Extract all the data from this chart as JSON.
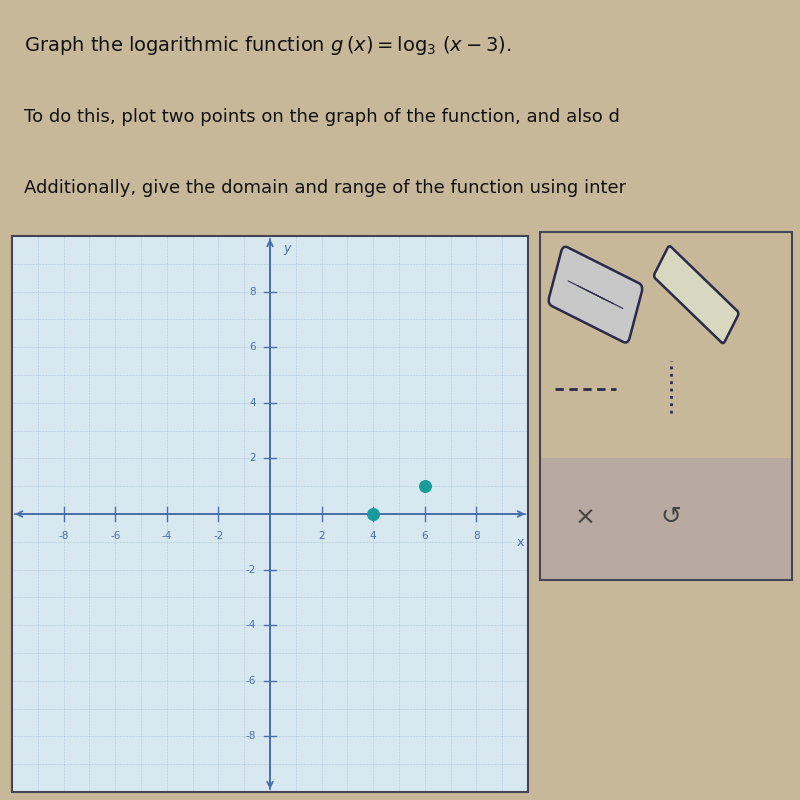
{
  "line1": "Graph the logarithmic function $g\\,(x) = \\log_3\\,(x-3).$",
  "line2": "To do this, plot two points on the graph of the function, and also d",
  "line3": "Additionally, give the domain and range of the function using inter",
  "points": [
    [
      4,
      0
    ],
    [
      6,
      1
    ]
  ],
  "point_color": "#1a9b9b",
  "xlim": [
    -10,
    10
  ],
  "ylim": [
    -10,
    10
  ],
  "xticks": [
    -8,
    -6,
    -4,
    -2,
    2,
    4,
    6,
    8
  ],
  "yticks": [
    -8,
    -6,
    -4,
    -2,
    2,
    4,
    6,
    8
  ],
  "grid_color": "#8ab0d0",
  "axis_color": "#4a6fa8",
  "outer_bg": "#c8b89a",
  "graph_bg": "#d8e8f0",
  "right_panel_bg": "#cfc0a8",
  "border_color": "#444455",
  "text_color": "#111111",
  "font_size_line1": 14,
  "font_size_line2": 13,
  "font_size_line3": 13,
  "dot_size": 70,
  "xlabel": "x",
  "ylabel": "y"
}
